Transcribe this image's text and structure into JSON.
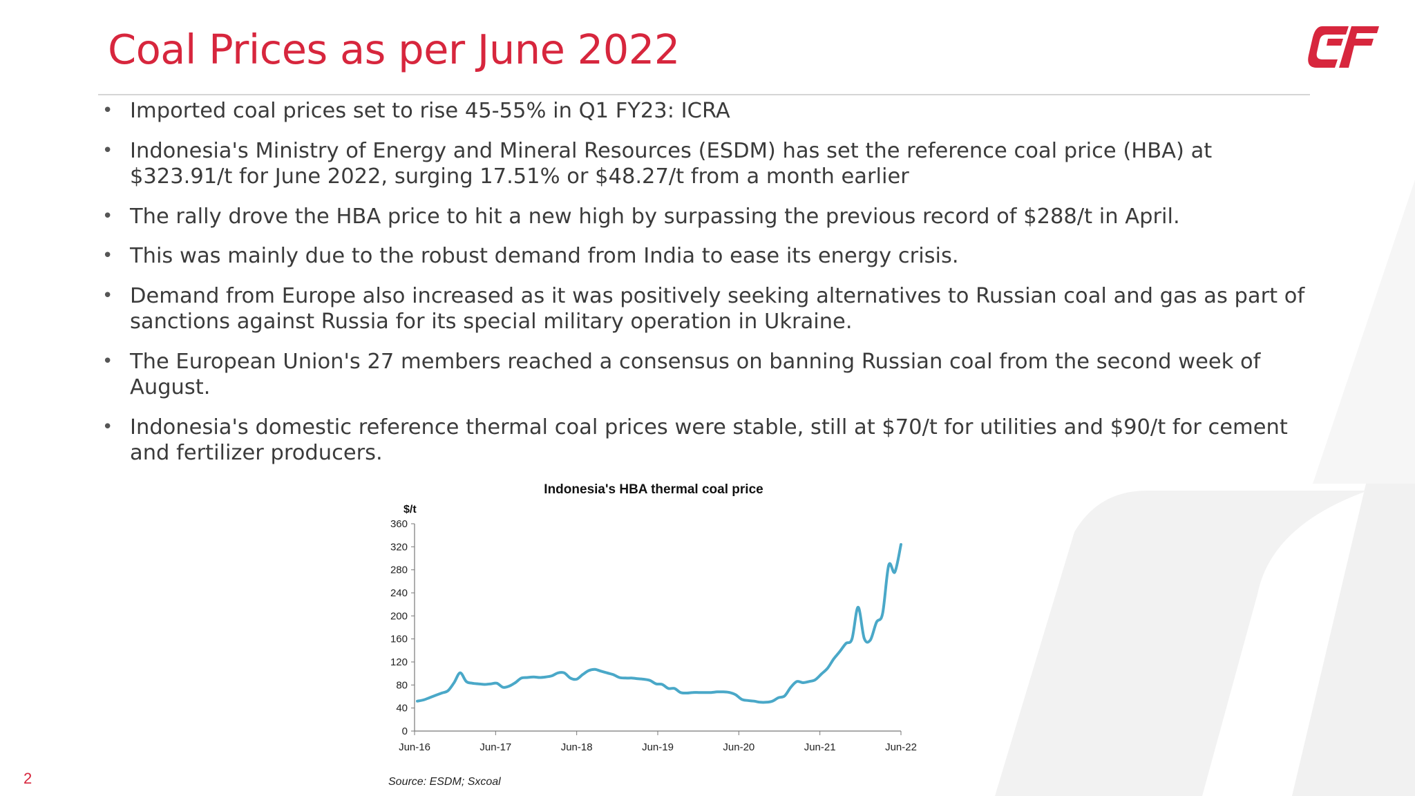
{
  "slide": {
    "title": "Coal Prices as per June 2022",
    "page_number": "2",
    "accent_color": "#d7263d",
    "logo_icon": "cf-logo-icon"
  },
  "bullets": [
    {
      "text": "Imported coal prices set to rise 45-55% in Q1 FY23: ICRA"
    },
    {
      "text": "Indonesia's Ministry of Energy and Mineral Resources (ESDM) has set the reference coal price (HBA) at $323.91/t for June 2022, surging 17.51% or $48.27/t from a month earlier"
    },
    {
      "text": "The rally drove the HBA price to hit a new high by surpassing the previous record of $288/t in April."
    },
    {
      "text": "This was mainly due to the robust demand from India to ease its energy crisis."
    },
    {
      "text": "Demand from Europe also increased as it was positively seeking alternatives to Russian coal and gas as part of sanctions against Russia for its special military operation in Ukraine."
    },
    {
      "text": "The European Union's 27 members reached a consensus on banning Russian coal from the second week of August."
    },
    {
      "text": "Indonesia's domestic reference thermal coal prices were stable, still at $70/t for utilities and $90/t for cement and fertilizer producers."
    }
  ],
  "chart_data": {
    "type": "line",
    "title": "Indonesia's HBA thermal coal price",
    "ylabel": "$/t",
    "xlabel": "",
    "ylim": [
      0,
      360
    ],
    "yticks": [
      0,
      40,
      80,
      120,
      160,
      200,
      240,
      280,
      320,
      360
    ],
    "xticks": [
      "Jun-16",
      "Jun-17",
      "Jun-18",
      "Jun-19",
      "Jun-20",
      "Jun-21",
      "Jun-22"
    ],
    "source": "Source:  ESDM; Sxcoal",
    "line_color": "#4aa8c8",
    "grid": false,
    "series": [
      {
        "values": [
          52,
          54,
          58,
          62,
          66,
          70,
          84,
          101,
          86,
          83,
          82,
          81,
          82,
          83,
          76,
          78,
          84,
          92,
          93,
          94,
          93,
          94,
          96,
          101,
          101,
          92,
          90,
          98,
          105,
          107,
          104,
          101,
          98,
          93,
          92,
          92,
          91,
          90,
          88,
          82,
          81,
          74,
          74,
          67,
          66,
          67,
          67,
          67,
          67,
          68,
          68,
          67,
          63,
          55,
          53,
          52,
          50,
          50,
          52,
          58,
          61,
          76,
          86,
          84,
          86,
          89,
          99,
          109,
          125,
          138,
          152,
          160,
          215,
          161,
          158,
          189,
          204,
          288,
          276,
          324
        ]
      }
    ]
  }
}
